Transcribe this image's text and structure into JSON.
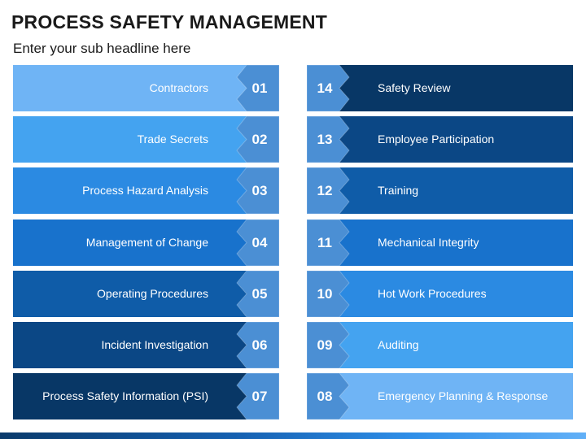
{
  "title": "PROCESS SAFETY MANAGEMENT",
  "subtitle": "Enter your sub headline here",
  "left": [
    {
      "num": "01",
      "label": "Contractors",
      "color": "#6fb4f5"
    },
    {
      "num": "02",
      "label": "Trade Secrets",
      "color": "#44a3f0"
    },
    {
      "num": "03",
      "label": "Process Hazard Analysis",
      "color": "#2b8ae2"
    },
    {
      "num": "04",
      "label": "Management of Change",
      "color": "#1872cc"
    },
    {
      "num": "05",
      "label": "Operating Procedures",
      "color": "#0f5ca8"
    },
    {
      "num": "06",
      "label": "Incident Investigation",
      "color": "#0b4785"
    },
    {
      "num": "07",
      "label": "Process Safety Information (PSI)",
      "color": "#083766"
    }
  ],
  "right": [
    {
      "num": "14",
      "label": "Safety Review",
      "color": "#083766"
    },
    {
      "num": "13",
      "label": "Employee Participation",
      "color": "#0b4785"
    },
    {
      "num": "12",
      "label": "Training",
      "color": "#0f5ca8"
    },
    {
      "num": "11",
      "label": "Mechanical Integrity",
      "color": "#1872cc"
    },
    {
      "num": "10",
      "label": "Hot Work Procedures",
      "color": "#2b8ae2"
    },
    {
      "num": "09",
      "label": "Auditing",
      "color": "#44a3f0"
    },
    {
      "num": "08",
      "label": "Emergency Planning & Response",
      "color": "#6fb4f5"
    }
  ],
  "number_tile_color": "#4b8fd4"
}
